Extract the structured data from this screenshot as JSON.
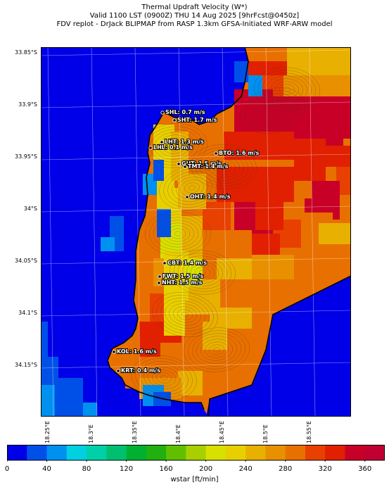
{
  "title": {
    "line1": "Thermal Updraft Velocity (W*)",
    "line2": "Valid 1100 LST (0900Z) THU 14 Aug 2025 [9hrFcst@0450z]",
    "line3": "FDV replot - DrJack BLIPMAP from RASP 1.3km GFSA-Initiated WRF-ARW model"
  },
  "axes": {
    "lat_labels": [
      "33.85°S",
      "33.9°S",
      "33.95°S",
      "34°S",
      "34.05°S",
      "34.1°S",
      "34.15°S"
    ],
    "lon_labels": [
      "18.25°E",
      "18.3°E",
      "18.35°E",
      "18.4°E",
      "18.45°E",
      "18.5°E",
      "18.55°E"
    ]
  },
  "stations": [
    {
      "code": "SHL",
      "text": "SHL: 0.7 m/s"
    },
    {
      "code": "SHT",
      "text": "SHT: 1.7 m/s"
    },
    {
      "code": "LHT",
      "text": "LHT: 1.3 m/s"
    },
    {
      "code": "LHL",
      "text": "LHL: 0.1 m/s"
    },
    {
      "code": "BTO",
      "text": "BTO: 1.6 m/s"
    },
    {
      "code": "GUT",
      "text": "GUT: 1.5 m/s"
    },
    {
      "code": "TMT",
      "text": "TMT: 1.4 m/s"
    },
    {
      "code": "OHT",
      "text": "OHT: 1.4 m/s"
    },
    {
      "code": "CBT",
      "text": "CBT: 1.4 m/s"
    },
    {
      "code": "FWT",
      "text": "FWT: 1.5 m/s"
    },
    {
      "code": "NHT",
      "text": "NHT: 1.5 m/s"
    },
    {
      "code": "KOL",
      "text": "KOL: 1.6 m/s"
    },
    {
      "code": "KRT",
      "text": "KRT: 0.4 m/s"
    }
  ],
  "colorbar": {
    "label": "wstar [ft/min]",
    "ticks": [
      "0",
      "40",
      "80",
      "120",
      "160",
      "200",
      "240",
      "280",
      "320",
      "360"
    ],
    "colors": [
      "#0000e8",
      "#0050e8",
      "#0090f0",
      "#00d0e0",
      "#00d0a8",
      "#00c070",
      "#00b030",
      "#20b010",
      "#60c000",
      "#a8d000",
      "#d8e000",
      "#e8d000",
      "#e8b000",
      "#e89000",
      "#e87000",
      "#e84000",
      "#e02000",
      "#c80028",
      "#c00030"
    ]
  }
}
